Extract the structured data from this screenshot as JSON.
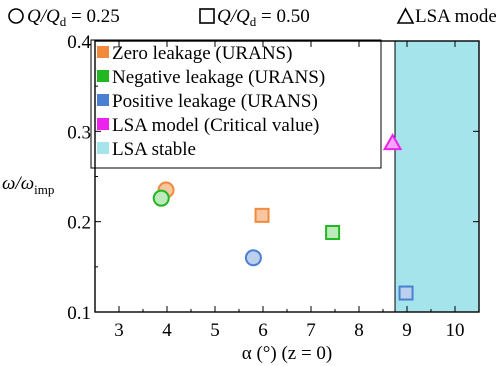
{
  "chart_data": {
    "type": "scatter",
    "title": "",
    "top_legend": [
      {
        "symbol": "circle",
        "text_main": "Q/Q",
        "text_sub": "d",
        "text_value": " = 0.25"
      },
      {
        "symbol": "square",
        "text_main": "Q/Q",
        "text_sub": "d",
        "text_value": " = 0.50"
      },
      {
        "symbol": "triangle",
        "text_main": "LSA model",
        "text_sub": "",
        "text_value": ""
      }
    ],
    "xlabel": "α (°) (z = 0)",
    "ylabel_main": "ω/ω",
    "ylabel_sub": "imp",
    "xlim": [
      2.5,
      10.5
    ],
    "ylim": [
      0.1,
      0.4
    ],
    "xticks": [
      3,
      4,
      5,
      6,
      7,
      8,
      9,
      10
    ],
    "yticks": [
      0.1,
      0.2,
      0.3,
      0.4
    ],
    "grid": false,
    "legend_position": "top-left",
    "legend": [
      {
        "label": "Zero leakage (URANS)",
        "color": "#f28a3c"
      },
      {
        "label": "Negative leakage (URANS)",
        "color": "#22b822"
      },
      {
        "label": "Positive leakage (URANS)",
        "color": "#4a7fd4"
      },
      {
        "label": "LSA model (Critical value)",
        "color": "#ee22ee"
      },
      {
        "label": "LSA stable",
        "color": "#a6e4ec"
      }
    ],
    "stable_region": {
      "x_from": 8.75,
      "x_to": 10.5,
      "color": "#a6e4ec"
    },
    "points": [
      {
        "series": "Zero leakage (URANS)",
        "marker": "circle",
        "x": 3.98,
        "y": 0.235,
        "stroke": "#f28a3c",
        "fill": "#f8c6a0"
      },
      {
        "series": "Negative leakage (URANS)",
        "marker": "circle",
        "x": 3.88,
        "y": 0.226,
        "stroke": "#22b822",
        "fill": "#bdeabd"
      },
      {
        "series": "Positive leakage (URANS)",
        "marker": "circle",
        "x": 5.8,
        "y": 0.16,
        "stroke": "#4a7fd4",
        "fill": "#bcd0ee"
      },
      {
        "series": "Zero leakage (URANS)",
        "marker": "square",
        "x": 5.98,
        "y": 0.207,
        "stroke": "#f28a3c",
        "fill": "#f8c6a0"
      },
      {
        "series": "Negative leakage (URANS)",
        "marker": "square",
        "x": 7.45,
        "y": 0.188,
        "stroke": "#22b822",
        "fill": "#bdeabd"
      },
      {
        "series": "Positive leakage (URANS)",
        "marker": "square",
        "x": 8.98,
        "y": 0.121,
        "stroke": "#4a7fd4",
        "fill": "#bcd0ee"
      },
      {
        "series": "LSA model (Critical value)",
        "marker": "triangle",
        "x": 8.7,
        "y": 0.287,
        "stroke": "#ee22ee",
        "fill": "#f6a6f6"
      }
    ]
  }
}
